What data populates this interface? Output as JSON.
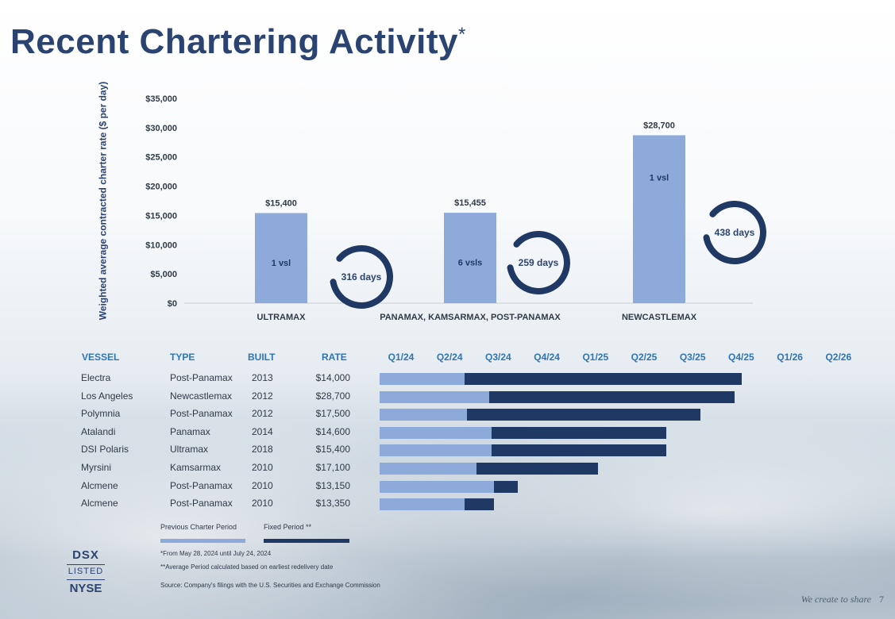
{
  "title": "Recent Chartering Activity",
  "title_mark": "*",
  "chart_data": {
    "type": "bar",
    "ylabel": "Weighted average contracted charter rate ($ per day)",
    "ylim": [
      0,
      35000
    ],
    "yticks": [
      0,
      5000,
      10000,
      15000,
      20000,
      25000,
      30000,
      35000
    ],
    "ytick_labels": [
      "$0",
      "$5,000",
      "$10,000",
      "$15,000",
      "$20,000",
      "$25,000",
      "$30,000",
      "$35,000"
    ],
    "categories": [
      "ULTRAMAX",
      "PANAMAX, KAMSARMAX, POST-PANAMAX",
      "NEWCASTLEMAX"
    ],
    "values": [
      15400,
      15455,
      28700
    ],
    "value_labels": [
      "$15,400",
      "$15,455",
      "$28,700"
    ],
    "inner_labels": [
      "1 vsl",
      "6 vsls",
      "1 vsl"
    ],
    "period_labels": [
      "316 days",
      "259 days",
      "438 days"
    ],
    "bar_color": "#8eaadb",
    "ring_color": "#1f3864"
  },
  "table": {
    "headers": [
      "VESSEL",
      "TYPE",
      "BUILT",
      "RATE"
    ],
    "quarters": [
      "Q1/24",
      "Q2/24",
      "Q3/24",
      "Q4/24",
      "Q1/25",
      "Q2/25",
      "Q3/25",
      "Q4/25",
      "Q1/26",
      "Q2/26"
    ],
    "rows": [
      {
        "vessel": "Electra",
        "type": "Post-Panamax",
        "built": "2013",
        "rate": "$14,000",
        "prev_start": 0.0,
        "fixed_start": 1.75,
        "fixed_end": 7.45
      },
      {
        "vessel": "Los Angeles",
        "type": "Newcastlemax",
        "built": "2012",
        "rate": "$28,700",
        "prev_start": 0.0,
        "fixed_start": 2.25,
        "fixed_end": 7.3
      },
      {
        "vessel": "Polymnia",
        "type": "Post-Panamax",
        "built": "2012",
        "rate": "$17,500",
        "prev_start": 0.0,
        "fixed_start": 1.8,
        "fixed_end": 6.6
      },
      {
        "vessel": "Atalandi",
        "type": "Panamax",
        "built": "2014",
        "rate": "$14,600",
        "prev_start": 0.0,
        "fixed_start": 2.3,
        "fixed_end": 5.9
      },
      {
        "vessel": "DSI Polaris",
        "type": "Ultramax",
        "built": "2018",
        "rate": "$15,400",
        "prev_start": 0.0,
        "fixed_start": 2.3,
        "fixed_end": 5.9
      },
      {
        "vessel": "Myrsini",
        "type": "Kamsarmax",
        "built": "2010",
        "rate": "$17,100",
        "prev_start": 0.0,
        "fixed_start": 2.0,
        "fixed_end": 4.5
      },
      {
        "vessel": "Alcmene",
        "type": "Post-Panamax",
        "built": "2010",
        "rate": "$13,150",
        "prev_start": 0.0,
        "fixed_start": 2.35,
        "fixed_end": 2.85
      },
      {
        "vessel": "Alcmene",
        "type": "Post-Panamax",
        "built": "2010",
        "rate": "$13,350",
        "prev_start": 0.0,
        "fixed_start": 1.75,
        "fixed_end": 2.35
      }
    ]
  },
  "legend": {
    "previous": "Previous Charter Period",
    "fixed": "Fixed Period **",
    "previous_color": "#8eaadb",
    "fixed_color": "#1f3864"
  },
  "notes": {
    "note1": "*From May 28, 2024 until July 24, 2024",
    "note2": "**Average Period calculated based on earliest redelivery date",
    "source": "Source: Company's filings with the U.S. Securities and Exchange Commission"
  },
  "logo": {
    "line1": "DSX",
    "line2": "LISTED",
    "line3": "NYSE"
  },
  "footer": {
    "tagline": "We create to share",
    "page": "7"
  }
}
